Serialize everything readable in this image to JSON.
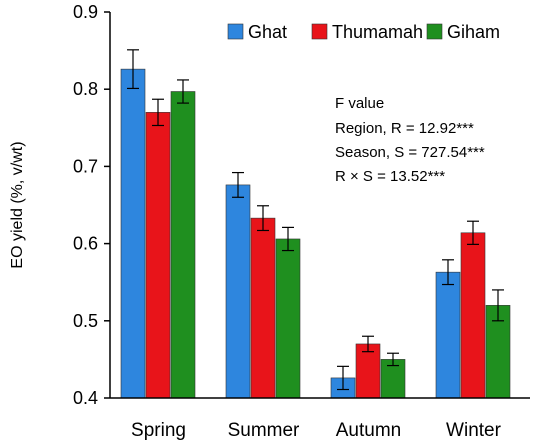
{
  "chart_data": {
    "type": "bar",
    "categories": [
      "Spring",
      "Summer",
      "Autumn",
      "Winter"
    ],
    "series": [
      {
        "name": "Ghat",
        "color": "#2E86DE",
        "values": [
          0.826,
          0.676,
          0.426,
          0.563
        ],
        "errors": [
          0.025,
          0.016,
          0.015,
          0.016
        ]
      },
      {
        "name": "Thumamah",
        "color": "#E8141A",
        "values": [
          0.77,
          0.633,
          0.47,
          0.614
        ],
        "errors": [
          0.017,
          0.016,
          0.01,
          0.015
        ]
      },
      {
        "name": "Giham",
        "color": "#1F8F1F",
        "values": [
          0.797,
          0.606,
          0.45,
          0.52
        ],
        "errors": [
          0.015,
          0.015,
          0.008,
          0.02
        ]
      }
    ],
    "ylabel": "EO yield (%, v/wt)",
    "xlabel": "",
    "ylim": [
      0.4,
      0.9
    ],
    "yticks": [
      0.4,
      0.5,
      0.6,
      0.7,
      0.8,
      0.9
    ],
    "ytick_labels": [
      "0.4",
      "0.5",
      "0.6",
      "0.7",
      "0.8",
      "0.9"
    ],
    "legend_position": "top-right",
    "grid": false,
    "annotation": {
      "title": "F value",
      "lines": [
        "Region, R = 12.92***",
        "Season, S = 727.54***",
        "R × S = 13.52***"
      ]
    }
  }
}
